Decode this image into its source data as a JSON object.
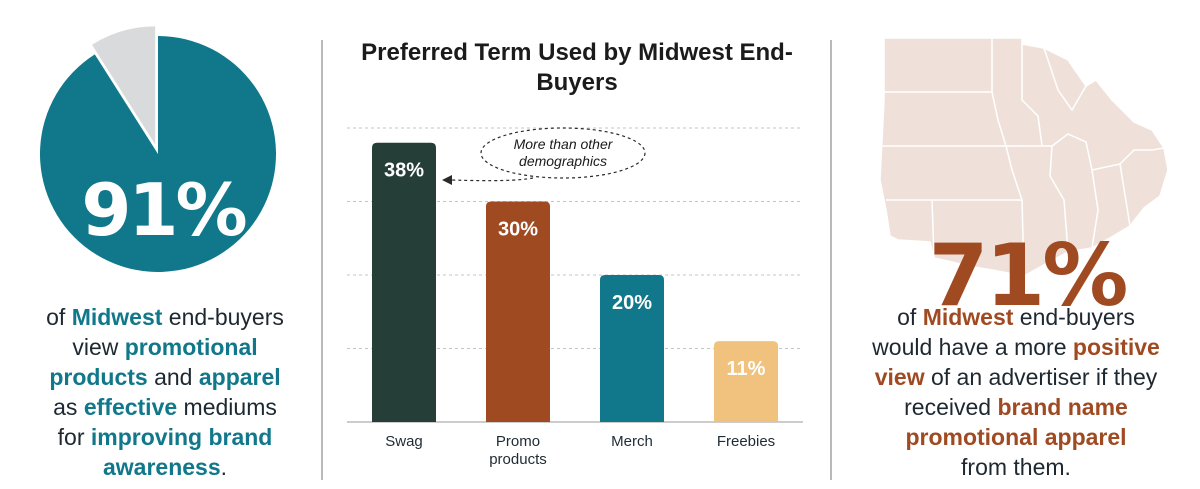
{
  "left": {
    "stat": "91%",
    "pie_value": 91,
    "caption": {
      "p1": "of ",
      "h1": "Midwest",
      "p2": " end-buyers",
      "p3": "view ",
      "h2": "promotional",
      "h3": "products",
      "p4": " and ",
      "h4": "apparel",
      "p5": "as ",
      "h5": "effective",
      "p6": " mediums",
      "p7": "for ",
      "h6": "improving brand",
      "h7": "awareness",
      "p8": "."
    }
  },
  "chart_data": {
    "type": "bar",
    "title": "Preferred Term Used by Midwest End-Buyers",
    "categories": [
      "Swag",
      "Promo products",
      "Merch",
      "Freebies"
    ],
    "values": [
      38,
      30,
      20,
      11
    ],
    "value_labels": [
      "38%",
      "30%",
      "20%",
      "11%"
    ],
    "colors": [
      "#253e37",
      "#a04a22",
      "#10788a",
      "#f0c27d"
    ],
    "ylim": [
      0,
      40
    ],
    "grid": true,
    "annotation": {
      "text_line1": "More than other",
      "text_line2": "demographics",
      "target": "Swag"
    }
  },
  "right": {
    "stat": "71%",
    "caption": {
      "p1": "of ",
      "h1": "Midwest",
      "p2": " end-buyers",
      "p3": "would have a more ",
      "h2": "positive",
      "h3": "view",
      "p4": " of an advertiser if they",
      "p5": "received ",
      "h4": "brand name",
      "h5": "promotional apparel",
      "p6": "from them."
    }
  },
  "colors": {
    "teal": "#10788a",
    "rust": "#a04a22",
    "dark_green": "#253e37",
    "tan": "#f0c27d",
    "pie_remainder": "#d9dadb",
    "map_fill": "#efe1da"
  }
}
